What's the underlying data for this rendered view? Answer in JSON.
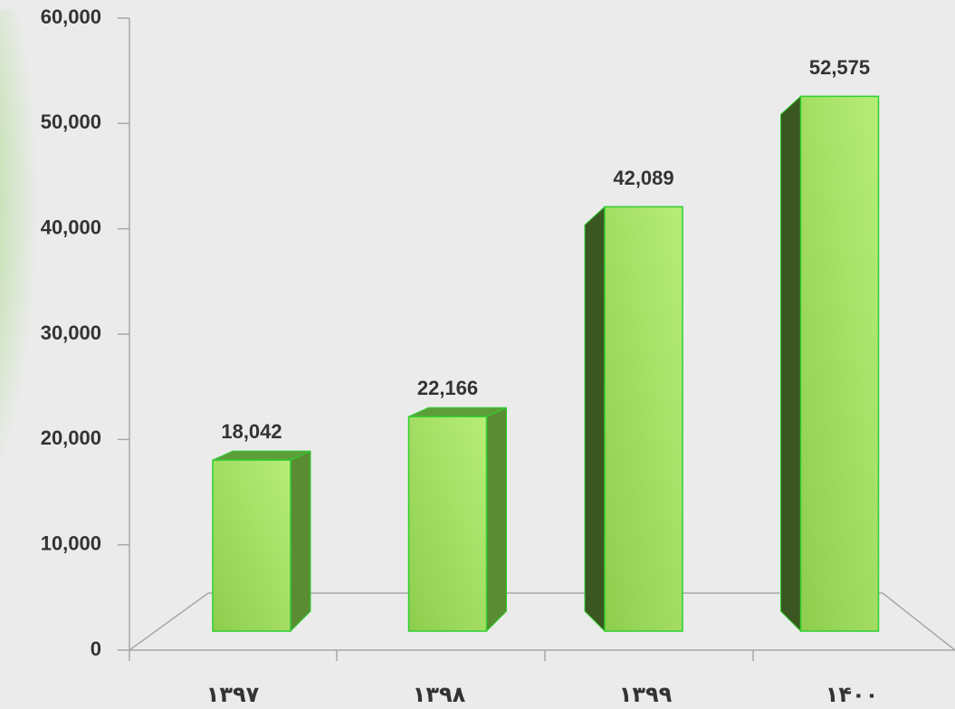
{
  "chart_data": {
    "type": "bar",
    "categories": [
      "۱۳۹۷",
      "۱۳۹۸",
      "۱۳۹۹",
      "۱۴۰۰"
    ],
    "values": [
      18042,
      22166,
      42089,
      52575
    ],
    "value_labels": [
      "18,042",
      "22,166",
      "42,089",
      "52,575"
    ],
    "color": "#9ad85a",
    "ylim": [
      0,
      60000
    ],
    "yticks": [
      0,
      {
        "value": 10000,
        "label": "10,000"
      },
      {
        "value": 20000,
        "label": "20,000"
      },
      {
        "value": 30000,
        "label": "30,000"
      },
      {
        "value": 40000,
        "label": "40,000"
      },
      {
        "value": 50000,
        "label": "50,000"
      },
      {
        "value": 60000,
        "label": "60,000"
      }
    ]
  }
}
